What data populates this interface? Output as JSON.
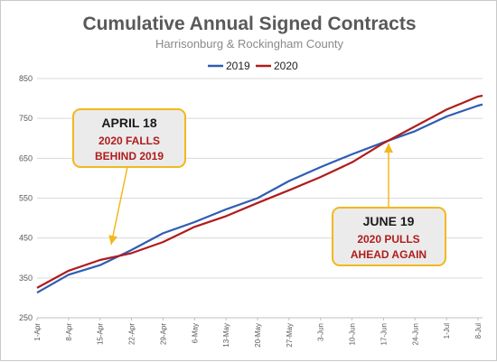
{
  "chart_data": {
    "type": "line",
    "title": "Cumulative Annual Signed Contracts",
    "subtitle": "Harrisonburg & Rockingham County",
    "xlabel": "",
    "ylabel": "",
    "ylim": [
      250,
      850
    ],
    "yticks": [
      250,
      350,
      450,
      550,
      650,
      750,
      850
    ],
    "grid": true,
    "legend_position": "top",
    "x_tick_labels": [
      "1-Apr",
      "8-Apr",
      "15-Apr",
      "22-Apr",
      "29-Apr",
      "6-May",
      "13-May",
      "20-May",
      "27-May",
      "3-Jun",
      "10-Jun",
      "17-Jun",
      "24-Jun",
      "1-Jul",
      "8-Jul"
    ],
    "x_tick_days": [
      0,
      7,
      14,
      21,
      28,
      35,
      42,
      49,
      56,
      63,
      70,
      77,
      84,
      91,
      98
    ],
    "xlim_days": [
      0,
      99
    ],
    "series": [
      {
        "name": "2019",
        "color": "#2e5db3",
        "x_days": [
          0,
          7,
          14,
          21,
          28,
          35,
          42,
          49,
          56,
          63,
          70,
          77,
          84,
          91,
          98,
          99
        ],
        "values": [
          313,
          358,
          382,
          420,
          462,
          490,
          522,
          550,
          593,
          628,
          660,
          690,
          718,
          755,
          782,
          785
        ]
      },
      {
        "name": "2020",
        "color": "#b01c1c",
        "x_days": [
          0,
          7,
          14,
          21,
          28,
          35,
          42,
          49,
          56,
          63,
          70,
          77,
          84,
          91,
          98,
          99
        ],
        "values": [
          325,
          368,
          395,
          412,
          440,
          478,
          505,
          538,
          570,
          603,
          640,
          688,
          730,
          772,
          805,
          807
        ]
      }
    ],
    "annotations": [
      {
        "heading": "APRIL 18",
        "line1": "2020 FALLS",
        "line2": "BEHIND 2019",
        "day": 17
      },
      {
        "heading": "JUNE 19",
        "line1": "2020 PULLS",
        "line2": "AHEAD AGAIN",
        "day": 79
      }
    ]
  }
}
